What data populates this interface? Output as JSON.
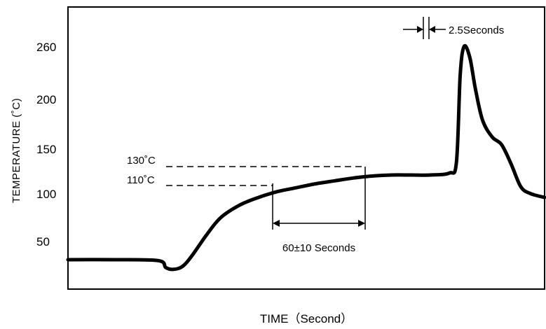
{
  "chart_data": {
    "type": "line",
    "title": "",
    "xlabel": "TIME（Second）",
    "ylabel": "TEMPERATURE (˚C)",
    "y_ticks": [
      "50",
      "100",
      "150",
      "200",
      "260"
    ],
    "y_tick_values": [
      50,
      100,
      150,
      200,
      260
    ],
    "ylim": [
      0,
      285
    ],
    "xlim": [
      0,
      100
    ],
    "grid": false,
    "legend": "none",
    "series": [
      {
        "values_x": [
          0,
          10,
          19,
          20.5,
          22,
          24,
          26,
          29,
          32,
          36,
          40,
          44,
          48,
          52,
          56,
          60,
          64,
          68,
          72,
          76,
          80,
          81.5,
          82.3,
          83.1,
          84.3,
          85.5,
          87,
          89,
          91,
          93,
          95,
          97,
          100
        ],
        "values_y": [
          40,
          40,
          39,
          32,
          30,
          33,
          44,
          65,
          83,
          96,
          104,
          110,
          114,
          118,
          121,
          124,
          126,
          127,
          127,
          127,
          129,
          140,
          230,
          259,
          248,
          215,
          183,
          166,
          158,
          138,
          115,
          108,
          104
        ]
      }
    ],
    "annotations": {
      "t130": "130˚C",
      "t110": "110˚C",
      "soak": "60±10 Seconds",
      "peak": "2.5Seconds"
    }
  }
}
